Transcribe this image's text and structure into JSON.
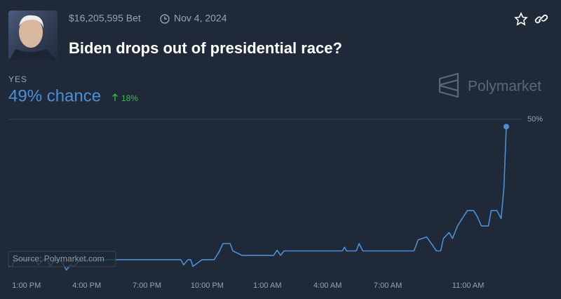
{
  "header": {
    "volume": "$16,205,595 Bet",
    "end_date": "Nov 4, 2024",
    "title": "Biden drops out of presidential race?",
    "outcome": "YES",
    "chance": "49% chance",
    "change": "18%",
    "brand": "Polymarket"
  },
  "chart_data": {
    "type": "line",
    "source": "Source: Polymarket.com",
    "color": "#4a90d9",
    "grid": true,
    "x": [
      -0.9,
      -0.7,
      -0.63,
      0.42,
      0.59,
      0.84,
      1.05,
      1.19,
      1.4,
      1.75,
      1.99,
      2.17,
      2.38,
      2.59,
      3.22,
      7.69,
      7.83,
      8.04,
      8.18,
      8.29,
      8.74,
      9.34,
      9.58,
      9.79,
      10.14,
      10.28,
      10.73,
      12.31,
      12.48,
      12.66,
      12.83,
      15.73,
      15.84,
      15.94,
      16.43,
      16.57,
      16.75,
      19.3,
      19.51,
      19.93,
      20.14,
      20.42,
      20.63,
      20.77,
      21.05,
      21.22,
      21.47,
      21.75,
      21.96,
      22.27,
      22.45,
      22.66,
      23.01,
      23.15,
      23.43,
      23.64,
      23.78,
      23.9
    ],
    "values": [
      30.0,
      30.0,
      30.9,
      30.9,
      30.2,
      30.9,
      30.9,
      30.0,
      30.9,
      30.7,
      29.5,
      30.2,
      30.0,
      30.7,
      30.9,
      30.9,
      30.2,
      30.9,
      30.9,
      30.0,
      30.9,
      30.9,
      31.9,
      33.1,
      33.1,
      32.1,
      31.5,
      31.5,
      32.2,
      31.5,
      32.1,
      32.1,
      32.6,
      32.1,
      32.1,
      33.1,
      32.1,
      32.1,
      33.6,
      34.0,
      33.2,
      32.1,
      32.1,
      33.8,
      34.6,
      33.8,
      35.5,
      36.7,
      37.6,
      37.6,
      36.8,
      35.5,
      35.5,
      37.6,
      37.6,
      36.5,
      40.7,
      49.0
    ],
    "xlim": [
      -0.9,
      23.9
    ],
    "ylim": [
      29,
      50
    ],
    "xticks": [
      {
        "value": 0,
        "label": "1:00 PM"
      },
      {
        "value": 3,
        "label": "4:00 PM"
      },
      {
        "value": 6,
        "label": "7:00 PM"
      },
      {
        "value": 9,
        "label": "10:00 PM"
      },
      {
        "value": 12,
        "label": "1:00 AM"
      },
      {
        "value": 15,
        "label": "4:00 AM"
      },
      {
        "value": 18,
        "label": "7:00 AM"
      },
      {
        "value": 22,
        "label": "11:00 AM"
      }
    ],
    "yticks": [
      {
        "value": 50,
        "label": "50%"
      }
    ]
  }
}
